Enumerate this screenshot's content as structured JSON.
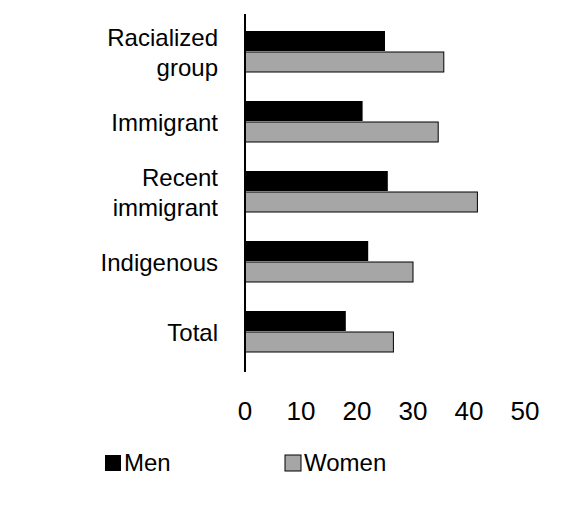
{
  "chart_data": {
    "type": "bar",
    "orientation": "horizontal",
    "categories": [
      "Racialized group",
      "Immigrant",
      "Recent immigrant",
      "Indigenous",
      "Total"
    ],
    "series": [
      {
        "name": "Men",
        "color": "#000000",
        "values": [
          25,
          21,
          25.5,
          22,
          18
        ]
      },
      {
        "name": "Women",
        "color": "#a6a6a6",
        "values": [
          35.5,
          34.5,
          41.5,
          30,
          26.5
        ]
      }
    ],
    "xlim": [
      0,
      50
    ],
    "xticks": [
      0,
      10,
      20,
      30,
      40,
      50
    ],
    "grid": false,
    "legend": "bottom"
  }
}
